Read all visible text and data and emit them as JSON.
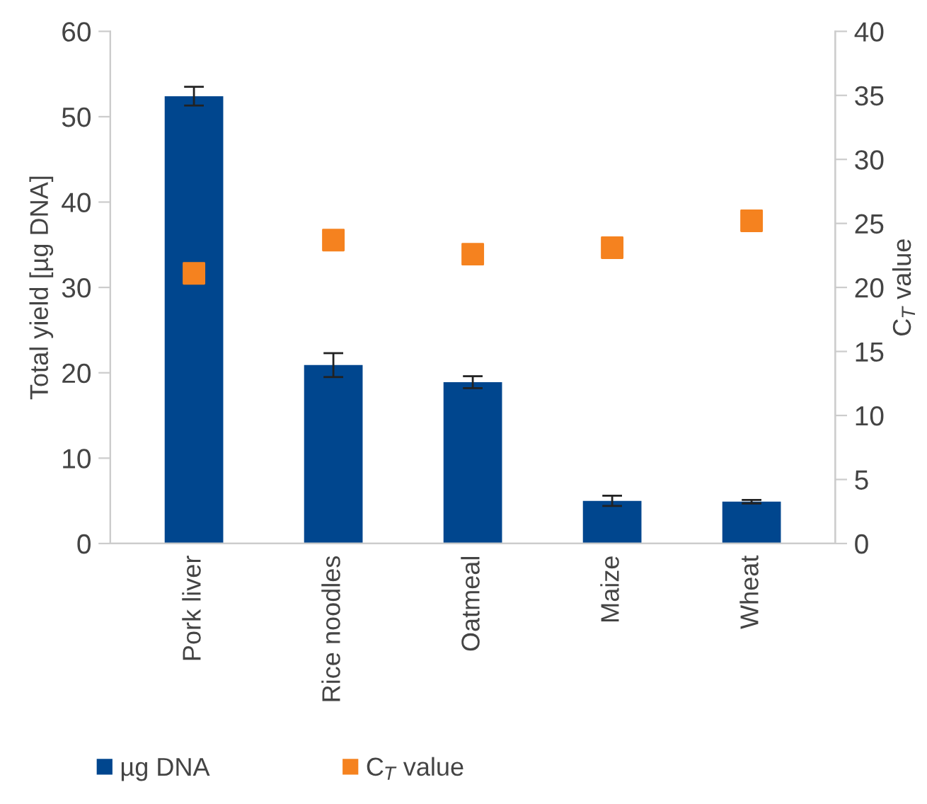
{
  "chart_data": {
    "type": "bar",
    "categories": [
      "Pork liver",
      "Rice noodles",
      "Oatmeal",
      "Maize",
      "Wheat"
    ],
    "series": [
      {
        "name": "µg DNA",
        "color": "#00468e",
        "values": [
          52.4,
          20.9,
          18.9,
          5.0,
          4.9
        ],
        "errors": [
          1.1,
          1.4,
          0.7,
          0.6,
          0.2
        ]
      },
      {
        "name": "C$_{T}$ value",
        "type": "scatter",
        "axis": "y2",
        "color": "#f5821f",
        "marker": "square",
        "values": [
          21.1,
          23.7,
          22.6,
          23.1,
          25.2
        ]
      }
    ],
    "ylabel": "Total yield [µg DNA]",
    "y2label": "C$_{T}$ value",
    "ylim": [
      0,
      60
    ],
    "yticks": [
      0,
      10,
      20,
      30,
      40,
      50,
      60
    ],
    "y2lim": [
      0,
      40
    ],
    "y2ticks": [
      0,
      5,
      10,
      15,
      20,
      25,
      30,
      35,
      40
    ],
    "grid": false,
    "legend": "bottom"
  }
}
